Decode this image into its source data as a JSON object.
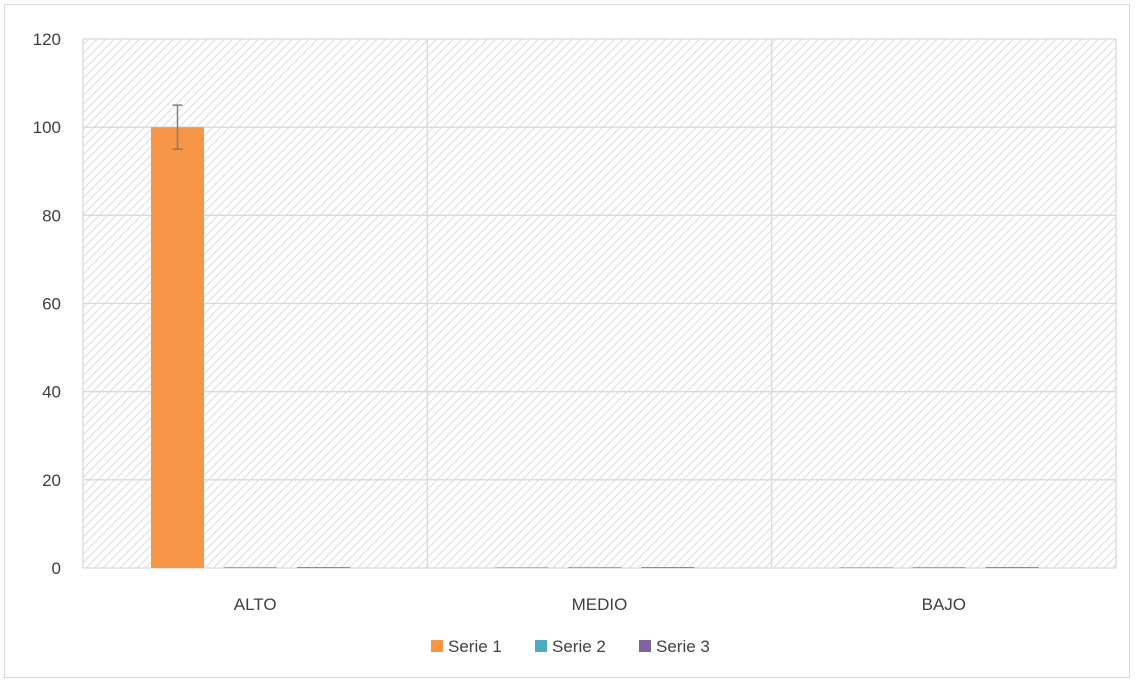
{
  "chart_data": {
    "type": "bar",
    "categories": [
      "ALTO",
      "MEDIO",
      "BAJO"
    ],
    "series": [
      {
        "name": "Serie 1",
        "color": "#F79646",
        "values": [
          100,
          0,
          0
        ],
        "error": [
          5,
          0,
          0
        ]
      },
      {
        "name": "Serie 2",
        "color": "#4BACC6",
        "values": [
          0,
          0,
          0
        ]
      },
      {
        "name": "Serie 3",
        "color": "#8064A2",
        "values": [
          0,
          0,
          0
        ]
      }
    ],
    "ylim": [
      0,
      120
    ],
    "yticks": [
      0,
      20,
      40,
      60,
      80,
      100,
      120
    ],
    "title": "",
    "xlabel": "",
    "ylabel": "",
    "grid": true,
    "legend": "bottom",
    "plot_background": "diagonal-hatch"
  }
}
